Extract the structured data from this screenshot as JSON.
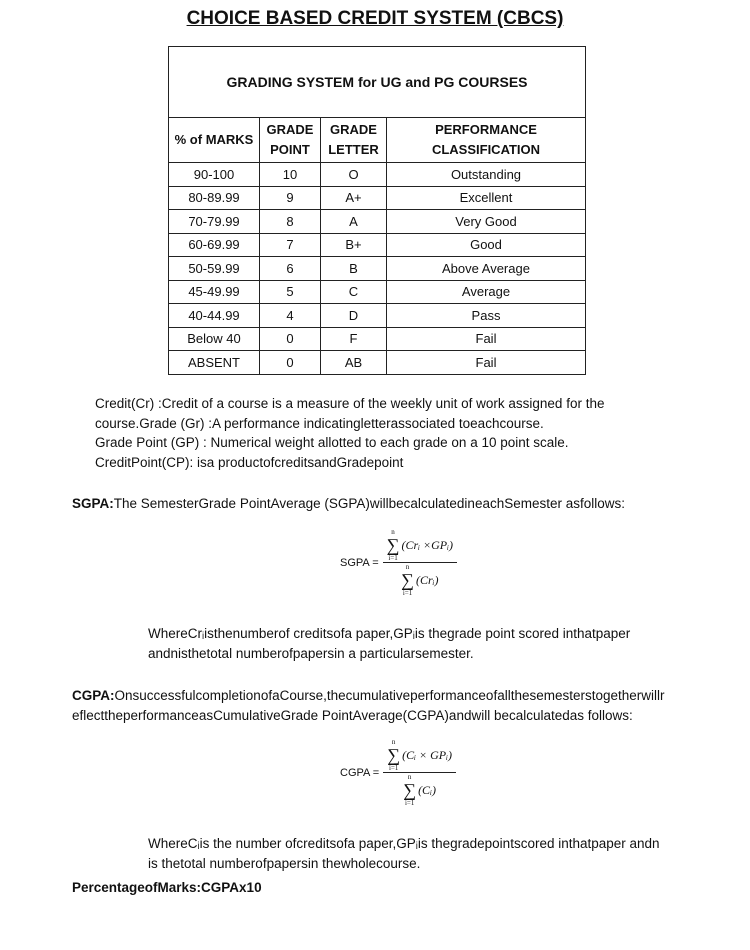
{
  "title": "CHOICE BASED CREDIT SYSTEM (CBCS)",
  "table": {
    "caption": "GRADING SYSTEM for UG and PG COURSES",
    "headers": [
      "% of MARKS",
      "GRADE POINT",
      "GRADE LETTER",
      "PERFORMANCE CLASSIFICATION"
    ],
    "rows": [
      [
        "90-100",
        "10",
        "O",
        "Outstanding"
      ],
      [
        "80-89.99",
        "9",
        "A+",
        "Excellent"
      ],
      [
        "70-79.99",
        "8",
        "A",
        "Very Good"
      ],
      [
        "60-69.99",
        "7",
        "B+",
        "Good"
      ],
      [
        "50-59.99",
        "6",
        "B",
        "Above Average"
      ],
      [
        "45-49.99",
        "5",
        "C",
        "Average"
      ],
      [
        "40-44.99",
        "4",
        "D",
        "Pass"
      ],
      [
        "Below 40",
        "0",
        "F",
        "Fail"
      ],
      [
        "ABSENT",
        "0",
        "AB",
        "Fail"
      ]
    ]
  },
  "definitions": [
    "Credit(Cr)  :Credit of a course is a measure of the weekly unit of work assigned for the",
    "course.Grade (Gr) :A performance indicatingletterassociated toeachcourse.",
    "Grade Point (GP) : Numerical weight allotted to each grade on a 10 point scale.",
    "CreditPoint(CP): isa productofcreditsandGradepoint"
  ],
  "sgpa": {
    "label": "SGPA:",
    "text": "The SemesterGrade PointAverage (SGPA)willbecalculatedineachSemester asfollows:",
    "formula_label": "SGPA =",
    "numerator": "(Crᵢ ×GPᵢ)",
    "denominator": "(Crᵢ)",
    "where_1": "WhereCrᵢisthenumberof creditsofa paper,GPᵢis thegrade point scored inthatpaper",
    "where_2": "andnisthetotal numberofpapersin a particularsemester."
  },
  "cgpa": {
    "label": "CGPA:",
    "text_1": "OnsuccessfulcompletionofaCourse,thecumulativeperformanceofallthesemesterstogetherwillr",
    "text_2": "eflecttheperformanceasCumulativeGrade PointAverage(CGPA)andwill becalculatedas follows:",
    "formula_label": "CGPA =",
    "numerator": "(Cᵢ × GPᵢ)",
    "denominator": "(Cᵢ)",
    "where_1": "WhereCᵢis the number ofcreditsofa paper,GPᵢis thegradepointscored inthatpaper andn",
    "where_2": "is thetotal numberofpapersin thewholecourse."
  },
  "percentage": "PercentageofMarks:CGPAx10",
  "sum": {
    "sigma": "∑",
    "upper": "n",
    "lower": "i=1"
  }
}
